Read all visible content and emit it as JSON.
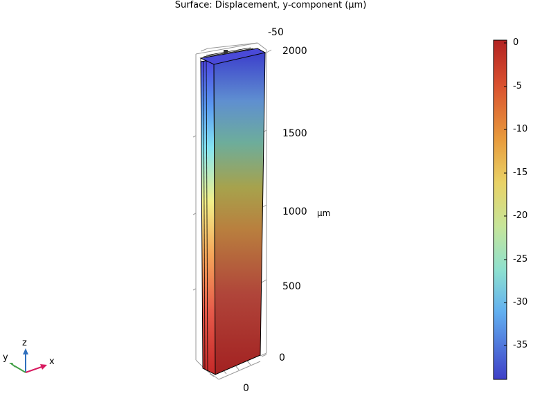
{
  "plot": {
    "title": "Surface: Displacement, y-component (µm)",
    "z_axis": {
      "ticks": [
        "2000",
        "1500",
        "1000",
        "500",
        "0"
      ],
      "unit": "µm",
      "top_label": "-50",
      "bottom_label": "0"
    },
    "triad": {
      "x": "x",
      "y": "y",
      "z": "z"
    }
  },
  "colorbar": {
    "min": -39,
    "max": 0,
    "labels": [
      "0",
      "-5",
      "-10",
      "-15",
      "-20",
      "-25",
      "-30",
      "-35"
    ],
    "colormap": "rainbow"
  },
  "colors": {
    "triad_x": "#d81b60",
    "triad_y": "#43a047",
    "triad_z": "#2f6fbd",
    "frame": "#9a9a9a"
  }
}
